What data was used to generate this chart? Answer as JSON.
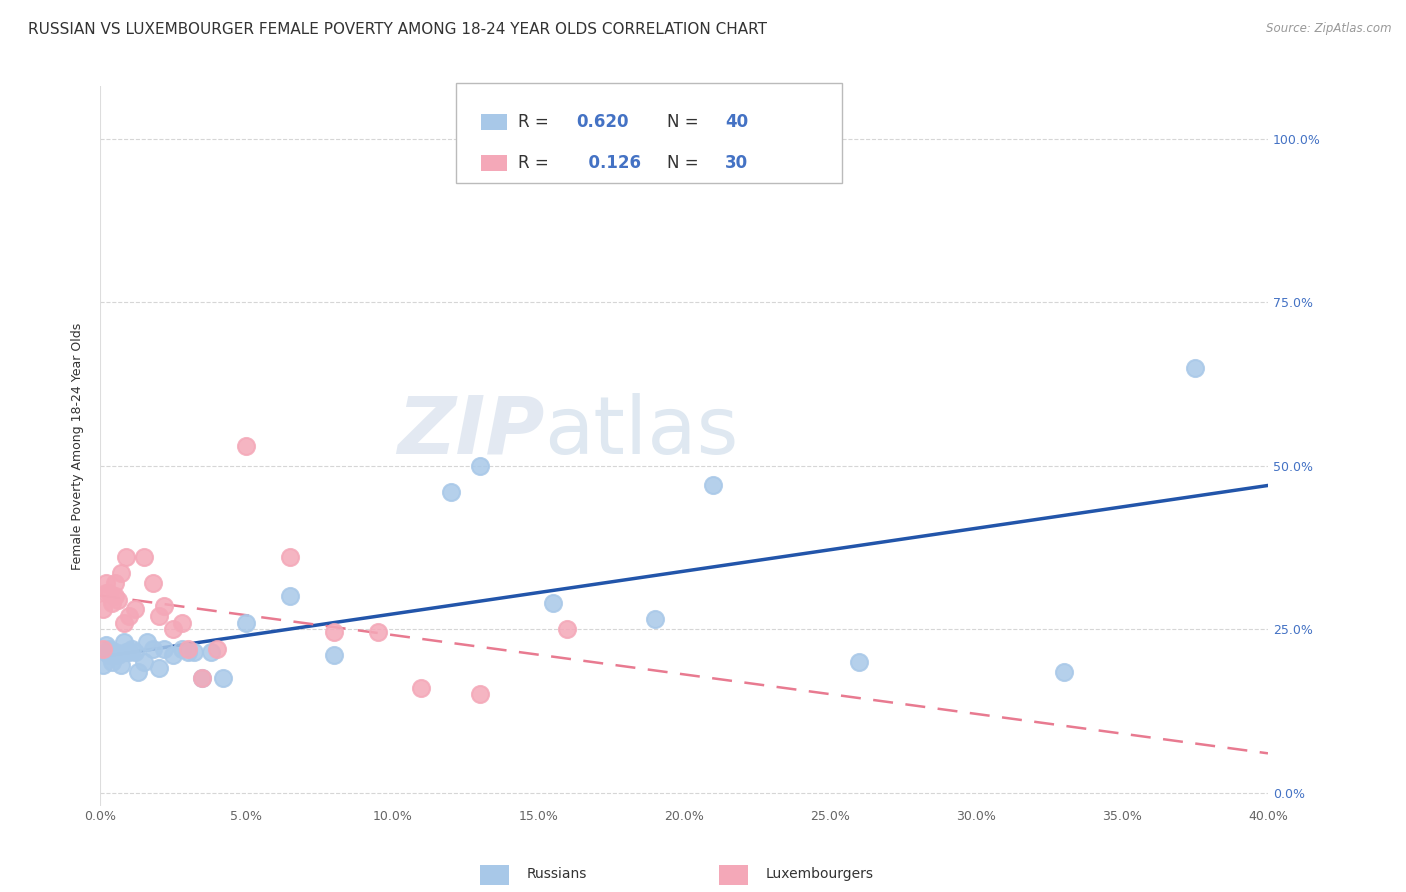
{
  "title": "RUSSIAN VS LUXEMBOURGER FEMALE POVERTY AMONG 18-24 YEAR OLDS CORRELATION CHART",
  "source": "Source: ZipAtlas.com",
  "ylabel": "Female Poverty Among 18-24 Year Olds",
  "xlim": [
    0.0,
    0.4
  ],
  "ylim": [
    -0.02,
    1.08
  ],
  "russians_R": 0.62,
  "russians_N": 40,
  "luxembourgers_R": 0.126,
  "luxembourgers_N": 30,
  "russians_color": "#a8c8e8",
  "luxembourgers_color": "#f4a8b8",
  "trend_russian_color": "#2255aa",
  "trend_lux_color": "#e87a90",
  "background_color": "#ffffff",
  "grid_color": "#cccccc",
  "watermark_left": "ZIP",
  "watermark_right": "atlas",
  "russians_x": [
    0.001,
    0.002,
    0.002,
    0.003,
    0.003,
    0.004,
    0.004,
    0.005,
    0.005,
    0.006,
    0.007,
    0.008,
    0.009,
    0.01,
    0.011,
    0.012,
    0.013,
    0.015,
    0.016,
    0.018,
    0.02,
    0.022,
    0.025,
    0.028,
    0.03,
    0.032,
    0.035,
    0.038,
    0.042,
    0.05,
    0.065,
    0.08,
    0.12,
    0.13,
    0.155,
    0.19,
    0.21,
    0.26,
    0.33,
    0.375
  ],
  "russians_y": [
    0.195,
    0.215,
    0.225,
    0.21,
    0.22,
    0.2,
    0.215,
    0.215,
    0.21,
    0.21,
    0.195,
    0.23,
    0.215,
    0.215,
    0.22,
    0.215,
    0.185,
    0.2,
    0.23,
    0.22,
    0.19,
    0.22,
    0.21,
    0.22,
    0.215,
    0.215,
    0.175,
    0.215,
    0.175,
    0.26,
    0.3,
    0.21,
    0.46,
    0.5,
    0.29,
    0.265,
    0.47,
    0.2,
    0.185,
    0.65
  ],
  "luxembourgers_x": [
    0.001,
    0.001,
    0.002,
    0.002,
    0.003,
    0.004,
    0.005,
    0.005,
    0.006,
    0.007,
    0.008,
    0.009,
    0.01,
    0.012,
    0.015,
    0.018,
    0.02,
    0.022,
    0.025,
    0.028,
    0.03,
    0.035,
    0.04,
    0.05,
    0.065,
    0.08,
    0.095,
    0.11,
    0.13,
    0.16
  ],
  "luxembourgers_y": [
    0.22,
    0.28,
    0.305,
    0.32,
    0.305,
    0.29,
    0.3,
    0.32,
    0.295,
    0.335,
    0.26,
    0.36,
    0.27,
    0.28,
    0.36,
    0.32,
    0.27,
    0.285,
    0.25,
    0.26,
    0.22,
    0.175,
    0.22,
    0.53,
    0.36,
    0.245,
    0.245,
    0.16,
    0.15,
    0.25
  ],
  "title_fontsize": 11,
  "axis_label_fontsize": 9,
  "tick_fontsize": 9,
  "legend_fontsize": 12
}
